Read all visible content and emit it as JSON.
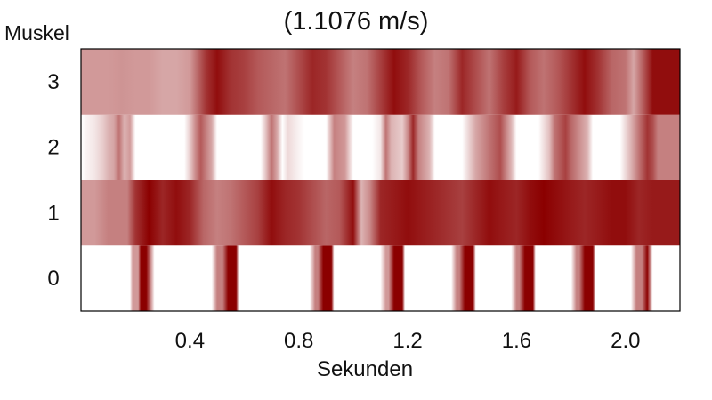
{
  "chart_data": {
    "type": "heatmap",
    "title": "(1.1076 m/s)",
    "xlabel": "Sekunden",
    "ylabel": "Muskel",
    "xlim": [
      0.0,
      2.2
    ],
    "ylim": [
      -0.5,
      3.5
    ],
    "x_ticks": [
      0.4,
      0.8,
      1.2,
      1.6,
      2.0
    ],
    "x_tick_labels": [
      "0.4",
      "0.8",
      "1.2",
      "1.6",
      "2.0"
    ],
    "y_ticks": [
      0,
      1,
      2,
      3
    ],
    "y_tick_labels": [
      "0",
      "1",
      "2",
      "3"
    ],
    "colors": {
      "low": "#ffffff",
      "high": "#8b0000"
    },
    "rows": [
      {
        "muscle": 0,
        "x": [
          0.0,
          0.18,
          0.19,
          0.21,
          0.22,
          0.24,
          0.27,
          0.28,
          0.48,
          0.5,
          0.52,
          0.54,
          0.57,
          0.58,
          0.84,
          0.86,
          0.87,
          0.89,
          0.92,
          0.93,
          1.1,
          1.12,
          1.13,
          1.15,
          1.18,
          1.19,
          1.36,
          1.38,
          1.39,
          1.41,
          1.44,
          1.45,
          1.58,
          1.6,
          1.61,
          1.63,
          1.66,
          1.67,
          1.8,
          1.82,
          1.83,
          1.85,
          1.88,
          1.89,
          2.0,
          2.02,
          2.04,
          2.06,
          2.08,
          2.1,
          2.2
        ],
        "values": [
          0.0,
          0.0,
          0.4,
          0.4,
          1.0,
          1.0,
          0.0,
          0.0,
          0.0,
          0.5,
          0.5,
          1.0,
          1.0,
          0.0,
          0.0,
          0.5,
          0.5,
          1.0,
          1.0,
          0.0,
          0.0,
          0.4,
          0.4,
          1.0,
          1.0,
          0.0,
          0.0,
          0.5,
          0.5,
          1.0,
          1.0,
          0.0,
          0.0,
          0.5,
          0.5,
          1.0,
          1.0,
          0.0,
          0.0,
          0.5,
          0.5,
          1.0,
          1.0,
          0.0,
          0.0,
          0.0,
          0.5,
          0.5,
          1.0,
          0.0,
          0.0
        ]
      },
      {
        "muscle": 1,
        "x": [
          0.0,
          0.05,
          0.1,
          0.17,
          0.2,
          0.25,
          0.3,
          0.35,
          0.4,
          0.45,
          0.5,
          0.55,
          0.6,
          0.65,
          0.7,
          0.75,
          0.8,
          0.85,
          0.9,
          0.95,
          1.0,
          1.03,
          1.06,
          1.1,
          1.15,
          1.2,
          1.25,
          1.3,
          1.35,
          1.4,
          1.45,
          1.5,
          1.55,
          1.6,
          1.65,
          1.7,
          1.75,
          1.8,
          1.85,
          1.9,
          1.95,
          2.0,
          2.05,
          2.1,
          2.15,
          2.2
        ],
        "values": [
          0.4,
          0.4,
          0.5,
          0.5,
          0.8,
          1.0,
          0.85,
          0.95,
          0.85,
          0.6,
          0.5,
          0.55,
          0.65,
          0.75,
          0.95,
          0.85,
          0.8,
          0.7,
          0.6,
          0.65,
          0.95,
          0.3,
          0.45,
          0.85,
          0.9,
          0.95,
          0.9,
          0.85,
          0.8,
          0.75,
          0.85,
          0.95,
          0.9,
          0.85,
          0.95,
          1.0,
          0.95,
          0.9,
          0.85,
          0.9,
          0.95,
          0.95,
          0.85,
          0.9,
          0.9,
          0.9
        ]
      },
      {
        "muscle": 2,
        "x": [
          0.0,
          0.02,
          0.05,
          0.08,
          0.1,
          0.12,
          0.14,
          0.16,
          0.18,
          0.2,
          0.24,
          0.38,
          0.4,
          0.42,
          0.44,
          0.46,
          0.48,
          0.5,
          0.54,
          0.66,
          0.68,
          0.7,
          0.72,
          0.74,
          0.76,
          0.82,
          0.86,
          0.9,
          0.93,
          0.97,
          1.0,
          1.02,
          1.07,
          1.1,
          1.12,
          1.14,
          1.18,
          1.2,
          1.22,
          1.24,
          1.28,
          1.3,
          1.32,
          1.36,
          1.4,
          1.45,
          1.5,
          1.54,
          1.56,
          1.58,
          1.6,
          1.62,
          1.64,
          1.68,
          1.72,
          1.74,
          1.78,
          1.8,
          1.86,
          1.88,
          1.92,
          1.95,
          1.98,
          2.02,
          2.05,
          2.08,
          2.1,
          2.12,
          2.2
        ],
        "values": [
          0.0,
          0.05,
          0.1,
          0.2,
          0.3,
          0.35,
          0.55,
          0.3,
          0.4,
          0.0,
          0.0,
          0.0,
          0.2,
          0.45,
          0.65,
          0.5,
          0.35,
          0.0,
          0.0,
          0.0,
          0.25,
          0.55,
          0.35,
          0.0,
          0.15,
          0.0,
          0.0,
          0.0,
          0.5,
          0.4,
          0.0,
          0.0,
          0.0,
          0.1,
          0.55,
          0.3,
          0.2,
          0.45,
          0.85,
          0.5,
          0.3,
          0.0,
          0.0,
          0.0,
          0.0,
          0.35,
          0.55,
          0.7,
          0.5,
          0.3,
          0.0,
          0.0,
          0.0,
          0.0,
          0.25,
          0.55,
          0.75,
          0.6,
          0.3,
          0.0,
          0.0,
          0.0,
          0.0,
          0.3,
          0.55,
          0.8,
          0.7,
          0.5,
          0.5
        ]
      },
      {
        "muscle": 3,
        "x": [
          0.0,
          0.1,
          0.15,
          0.2,
          0.25,
          0.3,
          0.35,
          0.4,
          0.43,
          0.46,
          0.5,
          0.55,
          0.6,
          0.65,
          0.7,
          0.75,
          0.8,
          0.85,
          0.9,
          0.95,
          1.0,
          1.05,
          1.1,
          1.15,
          1.2,
          1.25,
          1.3,
          1.35,
          1.4,
          1.45,
          1.5,
          1.55,
          1.6,
          1.65,
          1.7,
          1.75,
          1.8,
          1.85,
          1.9,
          1.95,
          2.0,
          2.03,
          2.06,
          2.1,
          2.15,
          2.2
        ],
        "values": [
          0.4,
          0.4,
          0.42,
          0.4,
          0.4,
          0.35,
          0.35,
          0.4,
          0.6,
          0.8,
          0.95,
          0.8,
          0.75,
          0.65,
          0.6,
          0.55,
          0.7,
          0.85,
          0.8,
          0.65,
          0.5,
          0.55,
          0.75,
          0.95,
          0.85,
          0.65,
          0.5,
          0.55,
          0.85,
          0.7,
          0.55,
          0.75,
          0.9,
          0.65,
          0.55,
          0.65,
          0.8,
          0.95,
          0.8,
          0.6,
          0.55,
          0.35,
          0.6,
          0.95,
          0.95,
          0.95
        ]
      }
    ]
  }
}
